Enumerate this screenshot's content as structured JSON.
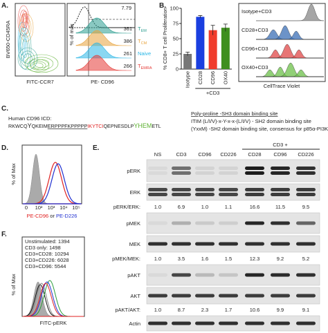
{
  "panel_a": {
    "label": "A.",
    "y_axis": "BV650-CD45RA",
    "x_axis": "FITC-CCR7",
    "hist_y_axis": "% of max",
    "hist_x_axis": "PE- CD96",
    "gate_value": 7.79,
    "populations": [
      {
        "name": "T",
        "sub": "EM",
        "color": "#2a9d8f",
        "mfi": 361
      },
      {
        "name": "T",
        "sub": "CM",
        "color": "#e8a33c",
        "mfi": 386
      },
      {
        "name": "Naive",
        "color": "#29b6e6",
        "mfi": 261
      },
      {
        "name": "T",
        "sub": "EMRA",
        "color": "#e53935",
        "mfi": 266
      }
    ]
  },
  "chart_data": {
    "type": "bar",
    "panel_label": "B.",
    "ylabel": "% CD8+ T cell Proliferation",
    "categories": [
      "Isotype",
      "CD28",
      "CD96",
      "OX40"
    ],
    "values": [
      25,
      86,
      64,
      68
    ],
    "errors": [
      3,
      2,
      8,
      6
    ],
    "colors": [
      "#777777",
      "#1a3fe0",
      "#f03c2c",
      "#3f8f1f"
    ],
    "ylim": [
      0,
      100
    ],
    "yticks": [
      0,
      25,
      50,
      75,
      100
    ],
    "group_label": "+CD3"
  },
  "panel_b_hist": {
    "labels": [
      "Isotype+CD3",
      "CD28+CD3",
      "CD96+CD3",
      "OX40+CD3"
    ],
    "colors": [
      "#888888",
      "#3b6fb6",
      "#e04848",
      "#6cc04a"
    ],
    "x_axis": "CellTrace Violet"
  },
  "panel_c": {
    "label": "C.",
    "title": "Human CD96 ICD:",
    "sequence": [
      {
        "text": "RKWCQ",
        "color": "#222222"
      },
      {
        "text": "Y",
        "color": "#222222",
        "large": true
      },
      {
        "text": "QKEIM",
        "color": "#222222"
      },
      {
        "text": "ERPPPFKPPPPP",
        "color": "#222222",
        "underline": true
      },
      {
        "text": "IKYTCI",
        "color": "#e02020"
      },
      {
        "text": "QEPNESDLP",
        "color": "#222222"
      },
      {
        "text": "YHEM",
        "color": "#5cb030",
        "large": true
      },
      {
        "text": "ETL",
        "color": "#222222"
      }
    ],
    "legend": [
      {
        "text": "Poly-proline -SH3 domain binding site",
        "color": "#222222",
        "underline": true
      },
      {
        "text": "ITIM (L/I/V)-x-Y-x-x-(L/I/V) - SH2 domain binding site",
        "color": "#e02020"
      },
      {
        "text": "(YxxM) -SH2 domain binding site, consensus for p85α-PI3K",
        "color": "#5cb030"
      }
    ]
  },
  "panel_d": {
    "label": "D.",
    "y_axis": "% of Max",
    "x_ticks": [
      "0",
      "10²",
      "10³",
      "10⁴",
      "10⁵"
    ],
    "x_axis": [
      {
        "text": "PE-CD96",
        "color": "#e02020"
      },
      {
        "text": " or ",
        "color": "#222222"
      },
      {
        "text": "PE-D226",
        "color": "#2030d0"
      }
    ]
  },
  "panel_e": {
    "label": "E.",
    "group_label": "CD3 +",
    "lanes": [
      "NS",
      "CD3",
      "CD96",
      "CD226",
      "CD28",
      "CD96",
      "CD226"
    ],
    "rows": [
      {
        "name": "pERK"
      },
      {
        "name": "ERK"
      },
      {
        "name": "pERK/ERK:",
        "ratios": [
          "1.0",
          "6.9",
          "1.0",
          "1.1",
          "16.6",
          "11.5",
          "9.5"
        ]
      },
      {
        "name": "pMEK"
      },
      {
        "name": "MEK"
      },
      {
        "name": "pMEK/MEK:",
        "ratios": [
          "1.0",
          "3.5",
          "1.6",
          "1.5",
          "12.3",
          "9.2",
          "5.2"
        ]
      },
      {
        "name": "pAKT"
      },
      {
        "name": "AKT"
      },
      {
        "name": "pAKT/AKT:",
        "ratios": [
          "1.0",
          "8.7",
          "2.3",
          "1.7",
          "10.6",
          "9.9",
          "9.1"
        ]
      },
      {
        "name": "Actin"
      }
    ]
  },
  "panel_f": {
    "label": "F.",
    "y_axis": "% of Max",
    "x_axis": "FITC-pERK",
    "legend": [
      {
        "text": "Unstimulated: 1394",
        "color": "#111111"
      },
      {
        "text": "CD3 only: 1498",
        "color": "#888888"
      },
      {
        "text": "CD3+CD28: 10294",
        "color": "#2a9d3a"
      },
      {
        "text": "CD3+CD226: 6028",
        "color": "#2030d0"
      },
      {
        "text": "CD3+CD96: 5544",
        "color": "#e02020"
      }
    ]
  }
}
